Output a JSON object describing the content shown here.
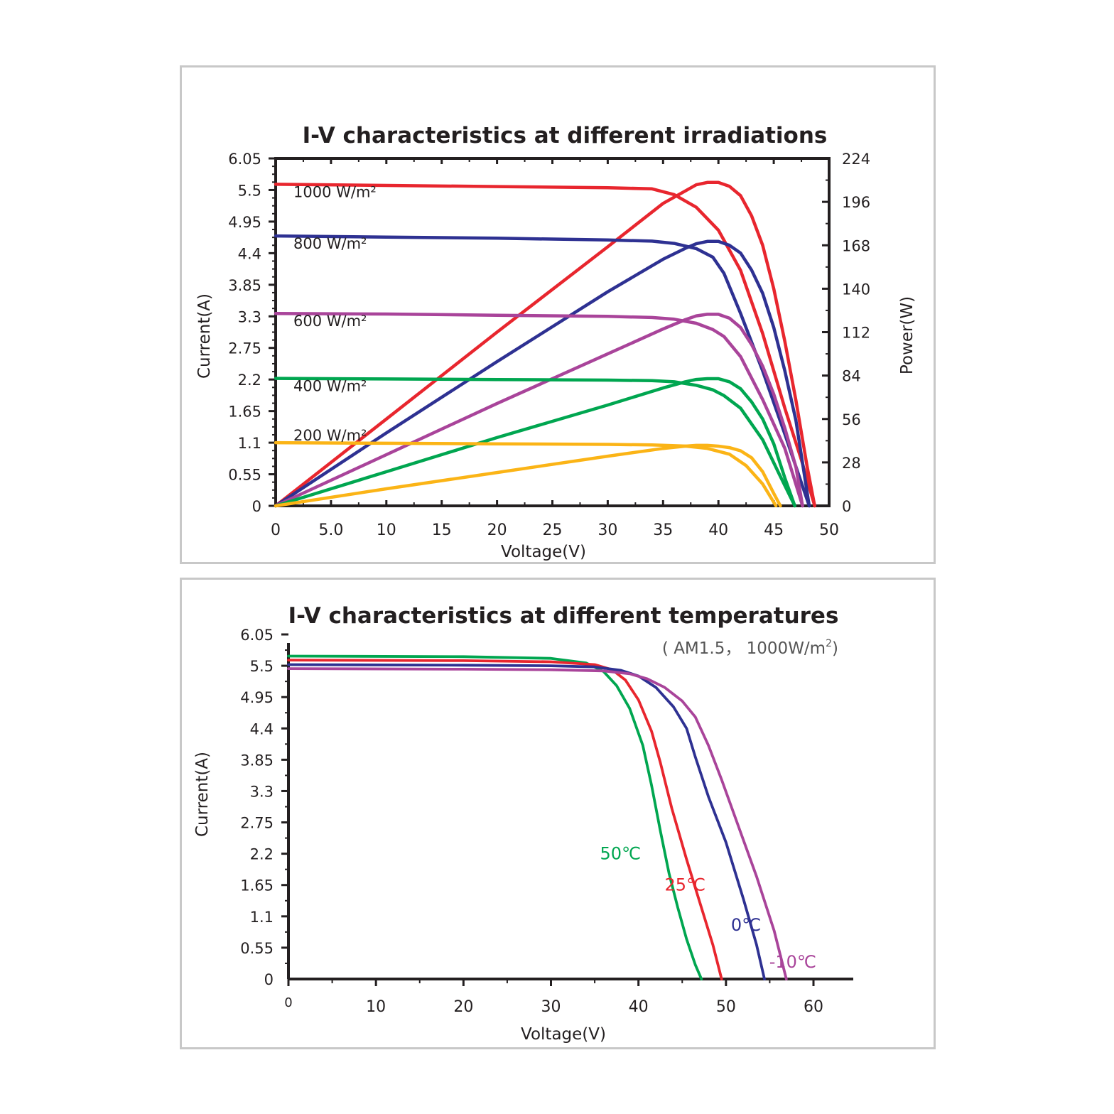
{
  "chart_data": [
    {
      "type": "line",
      "title": "I-V characteristics at different irradiations",
      "xlabel": "Voltage(V)",
      "ylabel": "Current(A)",
      "y2label": "Power(W)",
      "xlim": [
        0,
        50
      ],
      "ylim": [
        0,
        6.05
      ],
      "y2lim": [
        0,
        224
      ],
      "x_ticks": [
        "0",
        "5.0",
        "10",
        "15",
        "20",
        "25",
        "30",
        "35",
        "40",
        "45",
        "50"
      ],
      "y_ticks": [
        "0",
        "0.55",
        "1.1",
        "1.65",
        "2.2",
        "2.75",
        "3.3",
        "3.85",
        "4.4",
        "4.95",
        "5.5",
        "6.05"
      ],
      "y2_ticks": [
        "0",
        "28",
        "56",
        "84",
        "112",
        "140",
        "168",
        "196",
        "224"
      ],
      "grid": false,
      "series": [
        {
          "name": "1000 W/m²",
          "color": "#e8262e",
          "iv": {
            "x": [
              0,
              10,
              20,
              30,
              34,
              36,
              38,
              40,
              42,
              44,
              46,
              47.5,
              48.7
            ],
            "y": [
              5.6,
              5.58,
              5.56,
              5.54,
              5.52,
              5.42,
              5.2,
              4.8,
              4.1,
              3.0,
              1.7,
              0.8,
              0
            ]
          },
          "power": {
            "x": [
              0,
              10,
              20,
              30,
              35,
              37,
              38,
              39,
              40,
              41,
              42,
              43,
              44,
              45,
              46,
              47,
              48,
              48.7
            ],
            "y": [
              0,
              56,
              112,
              167,
              195,
              203,
              207,
              208.5,
              208.5,
              206,
              200,
              187,
              168,
              140,
              106,
              68,
              26,
              0
            ]
          }
        },
        {
          "name": "800 W/m²",
          "color": "#2e3192",
          "iv": {
            "x": [
              0,
              10,
              20,
              30,
              34,
              36,
              38,
              39.5,
              40.5,
              42,
              44,
              46,
              48.2
            ],
            "y": [
              4.7,
              4.68,
              4.66,
              4.63,
              4.61,
              4.57,
              4.48,
              4.33,
              4.05,
              3.35,
              2.35,
              1.25,
              0
            ]
          },
          "power": {
            "x": [
              0,
              10,
              20,
              30,
              35,
              37,
              38,
              39,
              40,
              41,
              42,
              43,
              44,
              45,
              46,
              47,
              48.2
            ],
            "y": [
              0,
              47,
              93,
              138,
              159,
              166,
              169,
              170.5,
              170.5,
              168,
              163,
              152,
              137,
              115,
              87,
              55,
              0
            ]
          }
        },
        {
          "name": "600 W/m²",
          "color": "#a9449a",
          "iv": {
            "x": [
              0,
              10,
              20,
              30,
              34,
              36,
              38,
              39.5,
              40.5,
              42,
              44,
              46,
              47.6
            ],
            "y": [
              3.35,
              3.34,
              3.32,
              3.3,
              3.28,
              3.25,
              3.18,
              3.07,
              2.95,
              2.6,
              1.85,
              1.0,
              0
            ]
          },
          "power": {
            "x": [
              0,
              10,
              20,
              30,
              35,
              37,
              38,
              39,
              40,
              41,
              42,
              43,
              44,
              45,
              46,
              47,
              47.6
            ],
            "y": [
              0,
              33,
              66,
              98,
              114,
              120,
              122.5,
              123.5,
              123.5,
              121,
              115,
              104,
              90,
              72,
              50,
              25,
              0
            ]
          }
        },
        {
          "name": "400 W/m²",
          "color": "#00a650",
          "iv": {
            "x": [
              0,
              10,
              20,
              30,
              34,
              36,
              38,
              39.5,
              40.5,
              42,
              44,
              45.5,
              46.9
            ],
            "y": [
              2.22,
              2.21,
              2.2,
              2.19,
              2.18,
              2.16,
              2.1,
              2.02,
              1.92,
              1.7,
              1.15,
              0.55,
              0
            ]
          },
          "power": {
            "x": [
              0,
              10,
              20,
              30,
              35,
              37,
              38,
              39,
              40,
              41,
              42,
              43,
              44,
              45,
              46,
              46.9
            ],
            "y": [
              0,
              22,
              44,
              65,
              76,
              80,
              81.5,
              82,
              82,
              80,
              75.5,
              67,
              56,
              40,
              18,
              0
            ]
          }
        },
        {
          "name": "200 W/m²",
          "color": "#fbb416",
          "iv": {
            "x": [
              0,
              10,
              20,
              30,
              34,
              37,
              39,
              41,
              42.5,
              44,
              45.2
            ],
            "y": [
              1.1,
              1.09,
              1.08,
              1.07,
              1.06,
              1.04,
              1.0,
              0.9,
              0.7,
              0.38,
              0
            ]
          },
          "power": {
            "x": [
              0,
              10,
              20,
              30,
              35,
              37,
              38,
              39,
              40,
              41,
              42,
              43,
              44,
              45,
              45.6
            ],
            "y": [
              0,
              11,
              21.5,
              32,
              37,
              38.5,
              39,
              39,
              38.5,
              37.5,
              35.5,
              31,
              22,
              8,
              0
            ]
          }
        }
      ]
    },
    {
      "type": "line",
      "title": "I-V characteristics at different temperatures",
      "subtitle": "( AM1.5， 1000W/m",
      "subtitle_sup": "2",
      "subtitle_end": ")",
      "xlabel": "Voltage(V)",
      "ylabel": "Current(A)",
      "xlim": [
        0,
        65
      ],
      "ylim": [
        0,
        6.05
      ],
      "x_ticks": [
        "0",
        "10",
        "20",
        "30",
        "40",
        "50",
        "60"
      ],
      "y_ticks": [
        "0",
        "0.55",
        "1.1",
        "1.65",
        "2.2",
        "2.75",
        "3.3",
        "3.85",
        "4.4",
        "4.95",
        "5.5",
        "6.05"
      ],
      "grid": false,
      "series": [
        {
          "name": "50℃",
          "color": "#00a650",
          "x": [
            0,
            20,
            30,
            34,
            36,
            37.5,
            39,
            40.5,
            41.5,
            42.5,
            43.5,
            44.5,
            45.5,
            46.5,
            47.2
          ],
          "y": [
            5.67,
            5.66,
            5.63,
            5.55,
            5.4,
            5.15,
            4.75,
            4.1,
            3.4,
            2.6,
            1.85,
            1.25,
            0.7,
            0.25,
            0
          ]
        },
        {
          "name": "25℃",
          "color": "#e8262e",
          "x": [
            0,
            20,
            30,
            35,
            37,
            38.5,
            40,
            41.5,
            42.5,
            43.8,
            45.5,
            47,
            48.5,
            49.5
          ],
          "y": [
            5.6,
            5.59,
            5.57,
            5.52,
            5.43,
            5.25,
            4.9,
            4.35,
            3.8,
            3.0,
            2.1,
            1.35,
            0.6,
            0
          ]
        },
        {
          "name": "0℃",
          "color": "#2e3192",
          "x": [
            0,
            20,
            30,
            35,
            38,
            40,
            42,
            44,
            45.5,
            46.5,
            48,
            50,
            52,
            53.5,
            54.4
          ],
          "y": [
            5.52,
            5.51,
            5.5,
            5.48,
            5.42,
            5.32,
            5.12,
            4.78,
            4.4,
            3.9,
            3.2,
            2.4,
            1.4,
            0.6,
            0
          ]
        },
        {
          "name": "-10℃",
          "color": "#a9449a",
          "x": [
            0,
            20,
            30,
            36,
            39,
            41,
            43,
            45,
            46.5,
            48,
            49.5,
            51.5,
            53.5,
            55.5,
            56.9
          ],
          "y": [
            5.45,
            5.44,
            5.43,
            5.41,
            5.36,
            5.27,
            5.12,
            4.88,
            4.6,
            4.1,
            3.5,
            2.65,
            1.8,
            0.85,
            0
          ]
        }
      ],
      "curve_labels": [
        {
          "text": "50℃",
          "color": "#00a650"
        },
        {
          "text": "25℃",
          "color": "#e8262e"
        },
        {
          "text": "0℃",
          "color": "#2e3192"
        },
        {
          "text": "-10℃",
          "color": "#a9449a"
        }
      ]
    }
  ]
}
